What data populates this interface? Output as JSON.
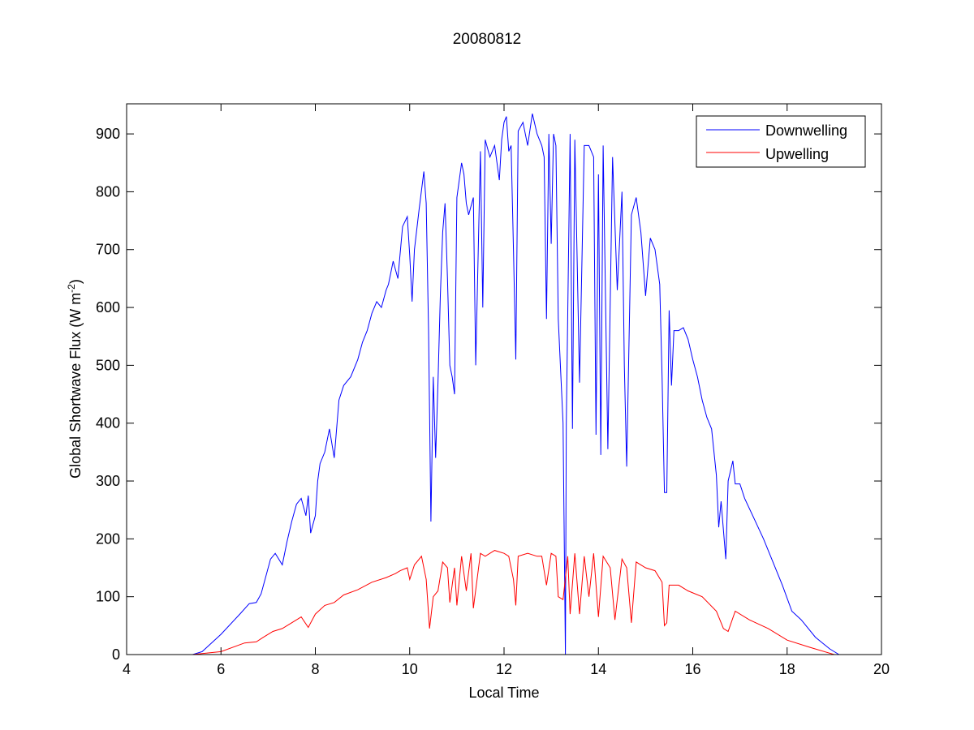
{
  "chart_data": {
    "type": "line",
    "title": "20080812",
    "xlabel": "Local Time",
    "ylabel": "Global Shortwave Flux (W m",
    "ylabel_sup": "-2",
    "ylabel_end": ")",
    "xlim": [
      4,
      20
    ],
    "ylim": [
      0,
      952
    ],
    "xticks": [
      4,
      6,
      8,
      10,
      12,
      14,
      16,
      18,
      20
    ],
    "yticks": [
      0,
      100,
      200,
      300,
      400,
      500,
      600,
      700,
      800,
      900
    ],
    "grid": false,
    "legend_position": "top-right",
    "series": [
      {
        "name": "Downwelling",
        "color": "#0000ff",
        "points": [
          [
            4.4,
            0
          ],
          [
            5.4,
            0
          ],
          [
            5.6,
            5
          ],
          [
            6.0,
            35
          ],
          [
            6.4,
            70
          ],
          [
            6.6,
            88
          ],
          [
            6.75,
            90
          ],
          [
            6.85,
            105
          ],
          [
            6.95,
            135
          ],
          [
            7.05,
            165
          ],
          [
            7.15,
            175
          ],
          [
            7.3,
            155
          ],
          [
            7.4,
            195
          ],
          [
            7.5,
            230
          ],
          [
            7.6,
            260
          ],
          [
            7.7,
            270
          ],
          [
            7.8,
            240
          ],
          [
            7.85,
            275
          ],
          [
            7.9,
            210
          ],
          [
            8.0,
            240
          ],
          [
            8.05,
            300
          ],
          [
            8.1,
            330
          ],
          [
            8.2,
            350
          ],
          [
            8.3,
            390
          ],
          [
            8.4,
            340
          ],
          [
            8.5,
            440
          ],
          [
            8.6,
            465
          ],
          [
            8.75,
            480
          ],
          [
            8.9,
            510
          ],
          [
            9.0,
            540
          ],
          [
            9.1,
            560
          ],
          [
            9.2,
            590
          ],
          [
            9.3,
            610
          ],
          [
            9.4,
            600
          ],
          [
            9.5,
            630
          ],
          [
            9.55,
            640
          ],
          [
            9.65,
            680
          ],
          [
            9.75,
            650
          ],
          [
            9.85,
            740
          ],
          [
            9.95,
            757
          ],
          [
            10.0,
            690
          ],
          [
            10.05,
            610
          ],
          [
            10.1,
            700
          ],
          [
            10.2,
            770
          ],
          [
            10.3,
            835
          ],
          [
            10.35,
            780
          ],
          [
            10.4,
            560
          ],
          [
            10.45,
            230
          ],
          [
            10.5,
            480
          ],
          [
            10.55,
            340
          ],
          [
            10.6,
            470
          ],
          [
            10.65,
            620
          ],
          [
            10.7,
            730
          ],
          [
            10.75,
            780
          ],
          [
            10.8,
            650
          ],
          [
            10.85,
            500
          ],
          [
            10.9,
            480
          ],
          [
            10.95,
            450
          ],
          [
            11.0,
            790
          ],
          [
            11.1,
            850
          ],
          [
            11.15,
            830
          ],
          [
            11.2,
            780
          ],
          [
            11.25,
            760
          ],
          [
            11.35,
            790
          ],
          [
            11.4,
            500
          ],
          [
            11.5,
            870
          ],
          [
            11.55,
            600
          ],
          [
            11.6,
            890
          ],
          [
            11.7,
            860
          ],
          [
            11.8,
            880
          ],
          [
            11.9,
            820
          ],
          [
            11.95,
            890
          ],
          [
            12.0,
            920
          ],
          [
            12.05,
            930
          ],
          [
            12.1,
            870
          ],
          [
            12.15,
            880
          ],
          [
            12.2,
            700
          ],
          [
            12.25,
            510
          ],
          [
            12.3,
            905
          ],
          [
            12.4,
            920
          ],
          [
            12.5,
            880
          ],
          [
            12.6,
            935
          ],
          [
            12.7,
            900
          ],
          [
            12.8,
            880
          ],
          [
            12.85,
            860
          ],
          [
            12.9,
            580
          ],
          [
            12.95,
            900
          ],
          [
            13.0,
            710
          ],
          [
            13.05,
            900
          ],
          [
            13.1,
            880
          ],
          [
            13.15,
            580
          ],
          [
            13.25,
            400
          ],
          [
            13.3,
            0
          ],
          [
            13.32,
            400
          ],
          [
            13.4,
            900
          ],
          [
            13.45,
            390
          ],
          [
            13.5,
            890
          ],
          [
            13.6,
            470
          ],
          [
            13.7,
            880
          ],
          [
            13.8,
            880
          ],
          [
            13.9,
            860
          ],
          [
            13.95,
            380
          ],
          [
            14.0,
            830
          ],
          [
            14.05,
            345
          ],
          [
            14.1,
            880
          ],
          [
            14.2,
            355
          ],
          [
            14.3,
            860
          ],
          [
            14.4,
            630
          ],
          [
            14.5,
            800
          ],
          [
            14.55,
            500
          ],
          [
            14.6,
            325
          ],
          [
            14.7,
            760
          ],
          [
            14.8,
            790
          ],
          [
            14.9,
            730
          ],
          [
            15.0,
            620
          ],
          [
            15.1,
            720
          ],
          [
            15.2,
            700
          ],
          [
            15.3,
            640
          ],
          [
            15.35,
            480
          ],
          [
            15.4,
            280
          ],
          [
            15.45,
            280
          ],
          [
            15.5,
            595
          ],
          [
            15.55,
            465
          ],
          [
            15.6,
            560
          ],
          [
            15.7,
            560
          ],
          [
            15.8,
            565
          ],
          [
            15.9,
            545
          ],
          [
            16.0,
            510
          ],
          [
            16.1,
            480
          ],
          [
            16.2,
            440
          ],
          [
            16.3,
            410
          ],
          [
            16.4,
            390
          ],
          [
            16.5,
            310
          ],
          [
            16.55,
            220
          ],
          [
            16.6,
            265
          ],
          [
            16.7,
            165
          ],
          [
            16.75,
            300
          ],
          [
            16.85,
            335
          ],
          [
            16.9,
            295
          ],
          [
            17.0,
            295
          ],
          [
            17.1,
            270
          ],
          [
            17.3,
            235
          ],
          [
            17.5,
            200
          ],
          [
            17.7,
            160
          ],
          [
            17.9,
            120
          ],
          [
            18.1,
            75
          ],
          [
            18.3,
            60
          ],
          [
            18.6,
            30
          ],
          [
            18.9,
            10
          ],
          [
            19.1,
            0
          ]
        ]
      },
      {
        "name": "Upwelling",
        "color": "#ff0000",
        "points": [
          [
            4.4,
            0
          ],
          [
            5.4,
            0
          ],
          [
            6.0,
            5
          ],
          [
            6.5,
            20
          ],
          [
            6.75,
            22
          ],
          [
            6.9,
            30
          ],
          [
            7.1,
            40
          ],
          [
            7.3,
            45
          ],
          [
            7.5,
            55
          ],
          [
            7.7,
            65
          ],
          [
            7.85,
            47
          ],
          [
            8.0,
            70
          ],
          [
            8.2,
            85
          ],
          [
            8.4,
            90
          ],
          [
            8.6,
            103
          ],
          [
            8.9,
            112
          ],
          [
            9.2,
            125
          ],
          [
            9.5,
            133
          ],
          [
            9.7,
            140
          ],
          [
            9.8,
            145
          ],
          [
            9.95,
            150
          ],
          [
            10.0,
            130
          ],
          [
            10.1,
            155
          ],
          [
            10.25,
            170
          ],
          [
            10.35,
            130
          ],
          [
            10.42,
            45
          ],
          [
            10.5,
            100
          ],
          [
            10.6,
            110
          ],
          [
            10.7,
            160
          ],
          [
            10.8,
            150
          ],
          [
            10.85,
            90
          ],
          [
            10.95,
            150
          ],
          [
            11.0,
            85
          ],
          [
            11.1,
            170
          ],
          [
            11.2,
            110
          ],
          [
            11.3,
            175
          ],
          [
            11.35,
            80
          ],
          [
            11.5,
            175
          ],
          [
            11.6,
            170
          ],
          [
            11.8,
            180
          ],
          [
            12.0,
            175
          ],
          [
            12.1,
            170
          ],
          [
            12.2,
            130
          ],
          [
            12.25,
            85
          ],
          [
            12.3,
            170
          ],
          [
            12.5,
            175
          ],
          [
            12.7,
            170
          ],
          [
            12.8,
            170
          ],
          [
            12.9,
            120
          ],
          [
            13.0,
            175
          ],
          [
            13.1,
            170
          ],
          [
            13.15,
            100
          ],
          [
            13.25,
            95
          ],
          [
            13.35,
            170
          ],
          [
            13.4,
            70
          ],
          [
            13.5,
            175
          ],
          [
            13.6,
            70
          ],
          [
            13.7,
            170
          ],
          [
            13.8,
            100
          ],
          [
            13.9,
            175
          ],
          [
            14.0,
            65
          ],
          [
            14.1,
            170
          ],
          [
            14.25,
            150
          ],
          [
            14.35,
            60
          ],
          [
            14.5,
            165
          ],
          [
            14.6,
            150
          ],
          [
            14.7,
            55
          ],
          [
            14.8,
            160
          ],
          [
            15.0,
            150
          ],
          [
            15.2,
            145
          ],
          [
            15.35,
            125
          ],
          [
            15.4,
            50
          ],
          [
            15.45,
            55
          ],
          [
            15.5,
            120
          ],
          [
            15.7,
            120
          ],
          [
            15.9,
            110
          ],
          [
            16.2,
            100
          ],
          [
            16.5,
            75
          ],
          [
            16.65,
            45
          ],
          [
            16.75,
            40
          ],
          [
            16.9,
            75
          ],
          [
            17.2,
            60
          ],
          [
            17.6,
            45
          ],
          [
            18.0,
            25
          ],
          [
            18.5,
            12
          ],
          [
            19.0,
            0
          ]
        ]
      }
    ]
  }
}
